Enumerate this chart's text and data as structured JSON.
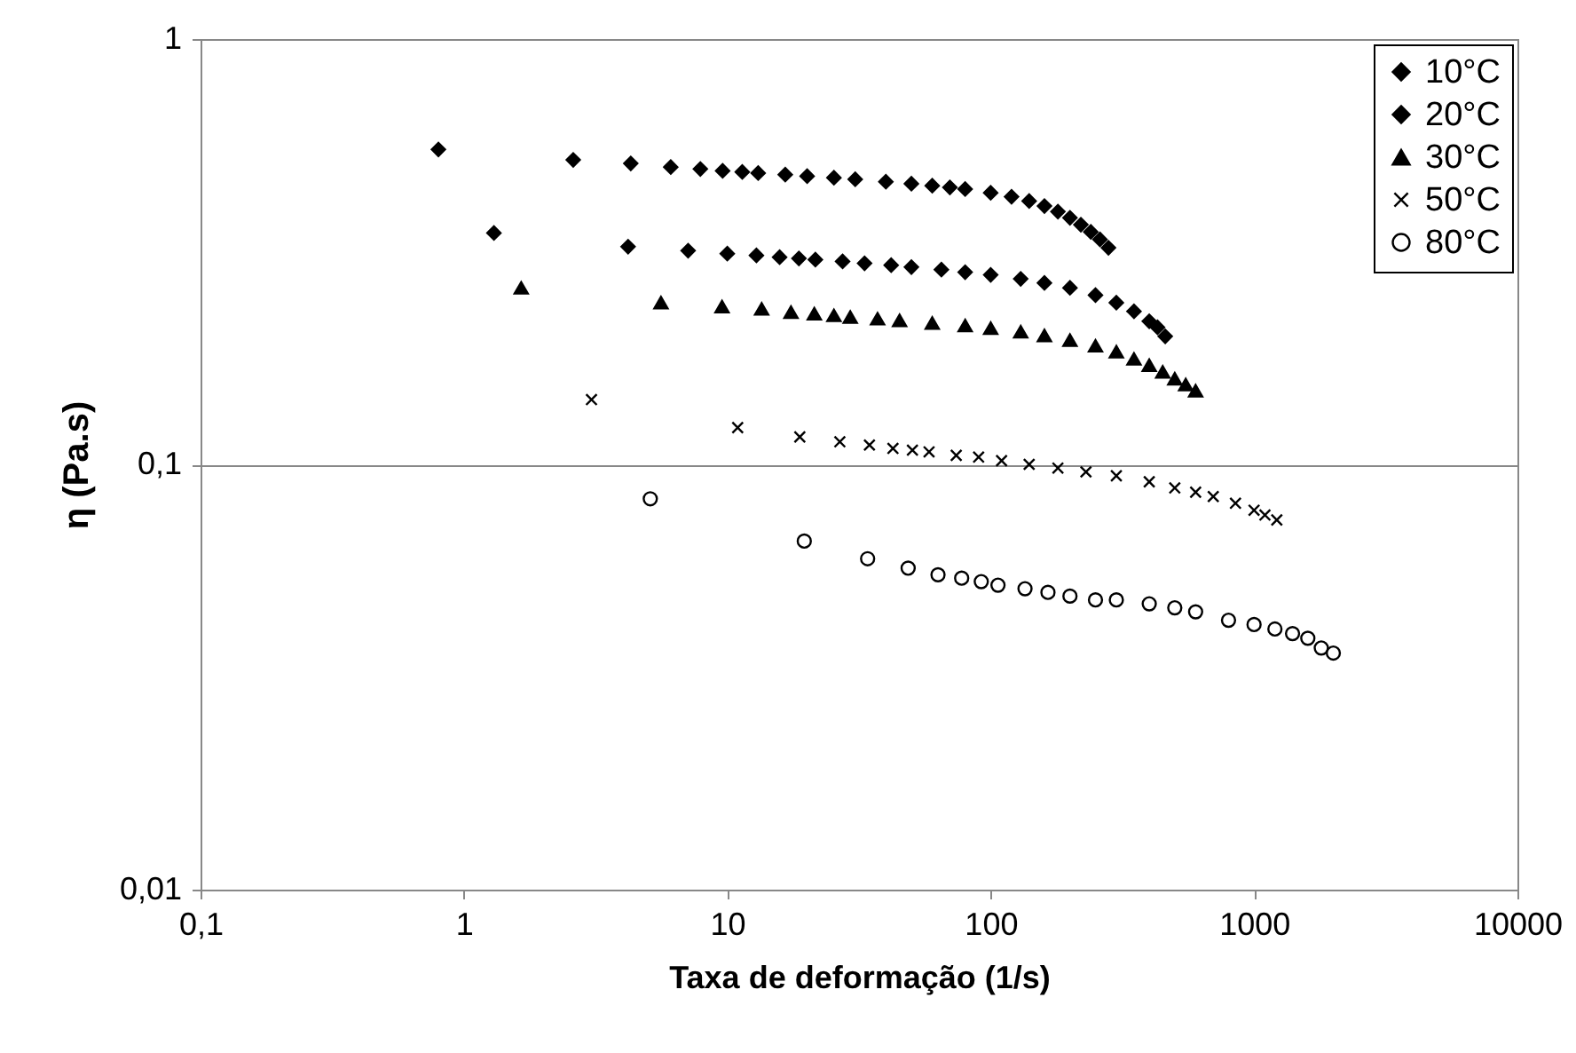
{
  "chart_data": {
    "type": "scatter",
    "xlabel": "Taxa de deformação (1/s)",
    "ylabel": "η (Pa.s)",
    "log": "xy",
    "grid": "y",
    "legend": "top right",
    "xlim": [
      0.1,
      10000
    ],
    "xticks": [
      {
        "value": 0.1,
        "label": "0,1"
      },
      1,
      10,
      100,
      1000,
      10000
    ],
    "ylim": [
      0.01,
      1
    ],
    "yticks": [
      {
        "value": 0.01,
        "label": "0,01"
      },
      {
        "value": 0.1,
        "label": "0,1"
      },
      1
    ],
    "series": [
      {
        "name": "10°C",
        "color": "#000000",
        "marker": "diamond",
        "x": [
          0.8,
          2.6,
          4.3,
          6.1,
          7.9,
          9.6,
          11.4,
          13.1,
          16.6,
          20.1,
          25.4,
          30.6,
          40,
          50,
          60,
          70,
          80,
          100,
          120,
          140,
          160,
          180,
          200,
          220,
          240,
          260,
          280
        ],
        "values": [
          0.55,
          0.52,
          0.51,
          0.5,
          0.495,
          0.49,
          0.487,
          0.484,
          0.48,
          0.476,
          0.472,
          0.468,
          0.462,
          0.457,
          0.452,
          0.448,
          0.444,
          0.435,
          0.426,
          0.416,
          0.405,
          0.393,
          0.38,
          0.366,
          0.352,
          0.338,
          0.323
        ]
      },
      {
        "name": "20°C",
        "color": "#000000",
        "marker": "diamond",
        "x": [
          1.3,
          4.2,
          7.1,
          10,
          12.9,
          15.8,
          18.7,
          21.6,
          27.4,
          33.2,
          41.9,
          50,
          65,
          80,
          100,
          130,
          160,
          200,
          250,
          300,
          350,
          400,
          430,
          460
        ],
        "values": [
          0.35,
          0.325,
          0.318,
          0.313,
          0.31,
          0.307,
          0.305,
          0.303,
          0.3,
          0.297,
          0.294,
          0.291,
          0.287,
          0.283,
          0.279,
          0.273,
          0.267,
          0.26,
          0.25,
          0.24,
          0.229,
          0.217,
          0.21,
          0.2
        ]
      },
      {
        "name": "30°C",
        "color": "#000000",
        "marker": "triangle",
        "x": [
          1.65,
          5.6,
          9.55,
          13.5,
          17.45,
          21.4,
          25.4,
          29.3,
          37.2,
          45.1,
          60,
          80,
          100,
          130,
          160,
          200,
          250,
          300,
          350,
          400,
          450,
          500,
          550,
          600
        ],
        "values": [
          0.26,
          0.24,
          0.235,
          0.232,
          0.228,
          0.226,
          0.224,
          0.222,
          0.22,
          0.218,
          0.215,
          0.212,
          0.209,
          0.205,
          0.201,
          0.196,
          0.19,
          0.184,
          0.177,
          0.171,
          0.165,
          0.159,
          0.154,
          0.149
        ]
      },
      {
        "name": "50°C",
        "color": "#000000",
        "marker": "cross",
        "x": [
          3.05,
          10.95,
          18.85,
          26.75,
          34.65,
          42.55,
          50.45,
          58.35,
          74,
          90,
          110,
          140,
          180,
          230,
          300,
          400,
          500,
          600,
          700,
          850,
          1000,
          1100,
          1220
        ],
        "values": [
          0.142,
          0.122,
          0.116,
          0.113,
          0.111,
          0.109,
          0.108,
          0.107,
          0.105,
          0.104,
          0.102,
          0.1,
          0.098,
          0.096,
          0.094,
          0.091,
          0.088,
          0.086,
          0.084,
          0.081,
          0.078,
          0.076,
          0.074
        ]
      },
      {
        "name": "80°C",
        "color": "#000000",
        "marker": "circle",
        "x": [
          5.1,
          19.6,
          34.1,
          48.6,
          63.1,
          77.6,
          92.1,
          106.6,
          135,
          165,
          200,
          250,
          300,
          400,
          500,
          600,
          800,
          1000,
          1200,
          1400,
          1600,
          1800,
          2000
        ],
        "values": [
          0.083,
          0.066,
          0.06,
          0.057,
          0.055,
          0.054,
          0.053,
          0.052,
          0.051,
          0.05,
          0.049,
          0.048,
          0.048,
          0.047,
          0.046,
          0.045,
          0.043,
          0.042,
          0.041,
          0.04,
          0.039,
          0.037,
          0.036
        ]
      }
    ]
  }
}
